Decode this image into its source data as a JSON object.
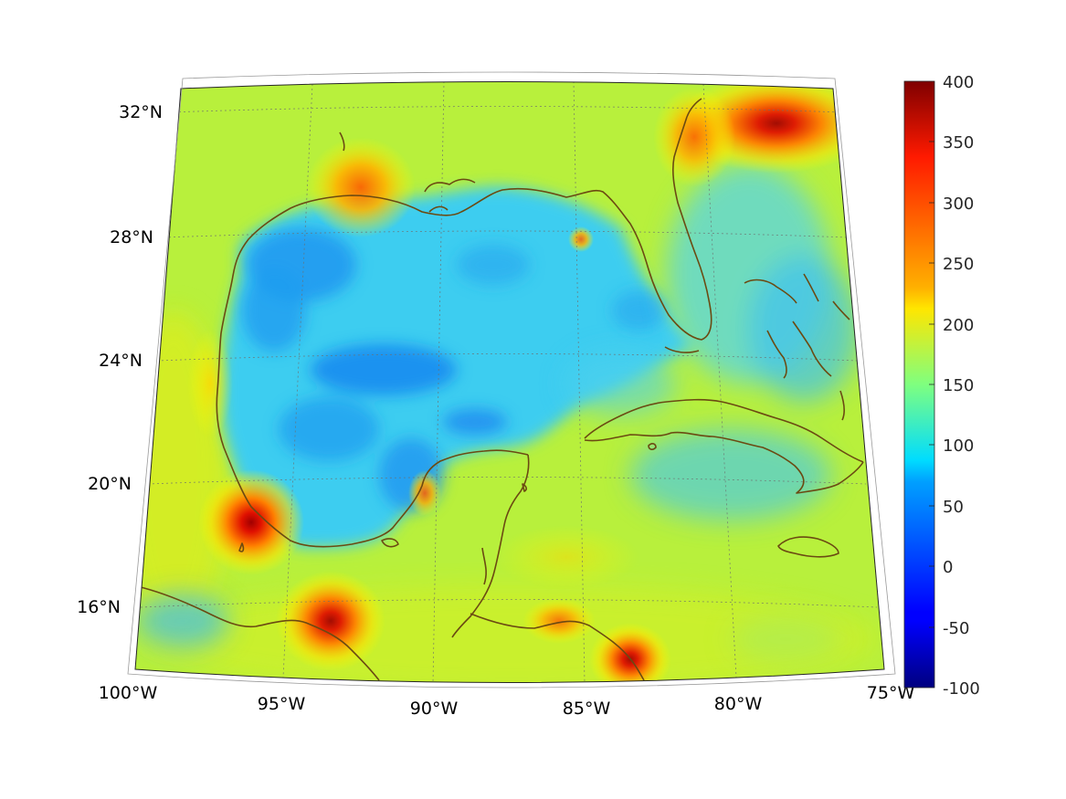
{
  "map": {
    "projection": "conic",
    "region": "Gulf of Mexico and Caribbean",
    "lon_range": [
      -100,
      -75
    ],
    "lat_range": [
      14,
      33
    ],
    "grid": true,
    "coastline_color": "#6b4a12",
    "lat_labels": [
      "32°N",
      "28°N",
      "24°N",
      "20°N",
      "16°N"
    ],
    "lon_labels": [
      "100°W",
      "95°W",
      "90°W",
      "85°W",
      "80°W",
      "75°W"
    ],
    "hotspots": [
      {
        "name": "north Louisiana coast",
        "lon": -92.5,
        "lat": 29.5,
        "value": 260
      },
      {
        "name": "Veracruz",
        "lon": -96.1,
        "lat": 19.0,
        "value": 390
      },
      {
        "name": "Gulf of Tehuantepec",
        "lon": -94.0,
        "lat": 16.2,
        "value": 350
      },
      {
        "name": "Honduras coast",
        "lon": -83.5,
        "lat": 15.0,
        "value": 330
      },
      {
        "name": "Georgia / Carolinas",
        "lon": -78.0,
        "lat": 31.8,
        "value": 360
      }
    ]
  },
  "colorbar": {
    "min": -100,
    "max": 400,
    "colormap": "jet",
    "ticks": [
      "400",
      "350",
      "300",
      "250",
      "200",
      "150",
      "100",
      "50",
      "0",
      "-50",
      "-100"
    ]
  }
}
